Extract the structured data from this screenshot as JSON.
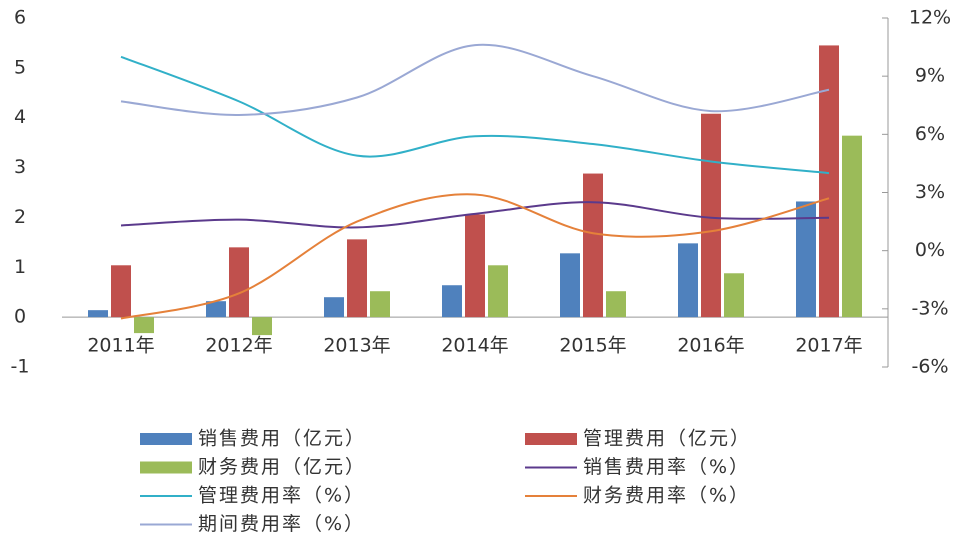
{
  "chart_data": {
    "type": "bar-line",
    "categories": [
      "2011年",
      "2012年",
      "2013年",
      "2014年",
      "2015年",
      "2016年",
      "2017年"
    ],
    "series": [
      {
        "name": "销售费用（亿元）",
        "type": "bar",
        "color": "#4f81bd",
        "values": [
          0.14,
          0.32,
          0.4,
          0.64,
          1.28,
          1.48,
          2.32
        ]
      },
      {
        "name": "管理费用（亿元）",
        "type": "bar",
        "color": "#c0504d",
        "values": [
          1.04,
          1.4,
          1.56,
          2.06,
          2.88,
          4.08,
          5.45
        ]
      },
      {
        "name": "财务费用（亿元）",
        "type": "bar",
        "color": "#9bbb59",
        "values": [
          -0.32,
          -0.36,
          0.52,
          1.04,
          0.52,
          0.88,
          3.64
        ]
      },
      {
        "name": "销售费用率（%）",
        "type": "line",
        "axis": "y2",
        "color": "#5b3a8c",
        "values": [
          1.3,
          1.6,
          1.2,
          1.9,
          2.5,
          1.7,
          1.7
        ]
      },
      {
        "name": "管理费用率（%）",
        "type": "line",
        "axis": "y2",
        "color": "#31b0c8",
        "values": [
          10.0,
          7.7,
          4.9,
          5.9,
          5.5,
          4.6,
          4.0
        ]
      },
      {
        "name": "财务费用率（%）",
        "type": "line",
        "axis": "y2",
        "color": "#e5813a",
        "values": [
          -3.5,
          -2.2,
          1.5,
          2.9,
          0.9,
          1.0,
          2.7
        ]
      },
      {
        "name": "期间费用率（%）",
        "type": "line",
        "axis": "y2",
        "color": "#9aa8d4",
        "values": [
          7.7,
          7.0,
          7.9,
          10.6,
          9.0,
          7.2,
          8.3
        ]
      }
    ],
    "ylim": [
      -1,
      6
    ],
    "yticks": [
      -1,
      0,
      1,
      2,
      3,
      4,
      5,
      6
    ],
    "y2lim": [
      -6,
      12
    ],
    "y2ticks": [
      {
        "value": -6,
        "label": "-6%"
      },
      {
        "value": -3,
        "label": "-3%"
      },
      {
        "value": 0,
        "label": "0%"
      },
      {
        "value": 3,
        "label": "3%"
      },
      {
        "value": 6,
        "label": "6%"
      },
      {
        "value": 9,
        "label": "9%"
      },
      {
        "value": 12,
        "label": "12%"
      }
    ],
    "smooth": true
  }
}
